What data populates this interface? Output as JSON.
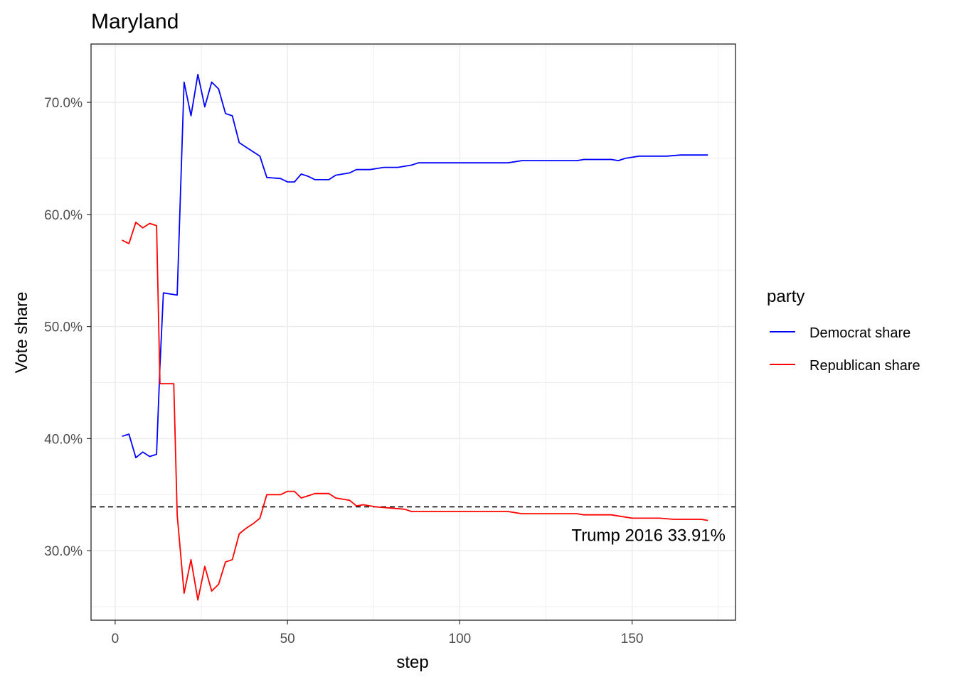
{
  "chart_data": {
    "type": "line",
    "title": "Maryland",
    "xlabel": "step",
    "ylabel": "Vote share",
    "xlim": [
      -7,
      180
    ],
    "ylim": [
      0.238,
      0.752
    ],
    "x_ticks": [
      0,
      50,
      100,
      150
    ],
    "x_tick_labels": [
      "0",
      "50",
      "100",
      "150"
    ],
    "y_ticks": [
      0.3,
      0.4,
      0.5,
      0.6,
      0.7
    ],
    "y_tick_labels": [
      "30.0%",
      "40.0%",
      "50.0%",
      "60.0%",
      "70.0%"
    ],
    "grid": true,
    "legend": {
      "title": "party",
      "position": "right"
    },
    "reference_line": {
      "y": 0.3391,
      "style": "dashed",
      "label": "Trump 2016 33.91%"
    },
    "series": [
      {
        "name": "Democrat share",
        "color": "#0000FF",
        "points": [
          [
            2,
            0.402
          ],
          [
            4,
            0.404
          ],
          [
            6,
            0.383
          ],
          [
            8,
            0.388
          ],
          [
            10,
            0.384
          ],
          [
            12,
            0.386
          ],
          [
            13,
            0.465
          ],
          [
            14,
            0.53
          ],
          [
            18,
            0.528
          ],
          [
            20,
            0.718
          ],
          [
            22,
            0.688
          ],
          [
            24,
            0.725
          ],
          [
            26,
            0.696
          ],
          [
            28,
            0.718
          ],
          [
            30,
            0.712
          ],
          [
            32,
            0.69
          ],
          [
            34,
            0.688
          ],
          [
            36,
            0.664
          ],
          [
            38,
            0.66
          ],
          [
            40,
            0.656
          ],
          [
            42,
            0.652
          ],
          [
            44,
            0.633
          ],
          [
            48,
            0.632
          ],
          [
            50,
            0.629
          ],
          [
            52,
            0.629
          ],
          [
            54,
            0.636
          ],
          [
            56,
            0.634
          ],
          [
            58,
            0.631
          ],
          [
            60,
            0.631
          ],
          [
            62,
            0.631
          ],
          [
            64,
            0.635
          ],
          [
            66,
            0.636
          ],
          [
            68,
            0.637
          ],
          [
            70,
            0.64
          ],
          [
            74,
            0.64
          ],
          [
            76,
            0.641
          ],
          [
            78,
            0.642
          ],
          [
            82,
            0.642
          ],
          [
            84,
            0.643
          ],
          [
            86,
            0.644
          ],
          [
            88,
            0.646
          ],
          [
            100,
            0.646
          ],
          [
            114,
            0.646
          ],
          [
            118,
            0.648
          ],
          [
            134,
            0.648
          ],
          [
            136,
            0.649
          ],
          [
            144,
            0.649
          ],
          [
            146,
            0.648
          ],
          [
            148,
            0.65
          ],
          [
            152,
            0.652
          ],
          [
            160,
            0.652
          ],
          [
            164,
            0.653
          ],
          [
            172,
            0.653
          ]
        ]
      },
      {
        "name": "Republican share",
        "color": "#FF0000",
        "points": [
          [
            2,
            0.577
          ],
          [
            4,
            0.574
          ],
          [
            6,
            0.593
          ],
          [
            8,
            0.588
          ],
          [
            10,
            0.592
          ],
          [
            12,
            0.59
          ],
          [
            13,
            0.449
          ],
          [
            17,
            0.449
          ],
          [
            18,
            0.332
          ],
          [
            20,
            0.262
          ],
          [
            22,
            0.292
          ],
          [
            24,
            0.256
          ],
          [
            26,
            0.286
          ],
          [
            28,
            0.264
          ],
          [
            30,
            0.27
          ],
          [
            32,
            0.29
          ],
          [
            34,
            0.292
          ],
          [
            36,
            0.315
          ],
          [
            38,
            0.32
          ],
          [
            40,
            0.324
          ],
          [
            42,
            0.329
          ],
          [
            44,
            0.35
          ],
          [
            48,
            0.35
          ],
          [
            50,
            0.353
          ],
          [
            52,
            0.353
          ],
          [
            54,
            0.347
          ],
          [
            56,
            0.349
          ],
          [
            58,
            0.351
          ],
          [
            62,
            0.351
          ],
          [
            64,
            0.347
          ],
          [
            66,
            0.346
          ],
          [
            68,
            0.345
          ],
          [
            70,
            0.34
          ],
          [
            72,
            0.341
          ],
          [
            74,
            0.34
          ],
          [
            76,
            0.339
          ],
          [
            80,
            0.338
          ],
          [
            84,
            0.337
          ],
          [
            86,
            0.335
          ],
          [
            100,
            0.335
          ],
          [
            114,
            0.335
          ],
          [
            118,
            0.333
          ],
          [
            134,
            0.333
          ],
          [
            136,
            0.332
          ],
          [
            144,
            0.332
          ],
          [
            146,
            0.331
          ],
          [
            150,
            0.329
          ],
          [
            158,
            0.329
          ],
          [
            162,
            0.328
          ],
          [
            170,
            0.328
          ],
          [
            172,
            0.327
          ]
        ]
      }
    ]
  }
}
